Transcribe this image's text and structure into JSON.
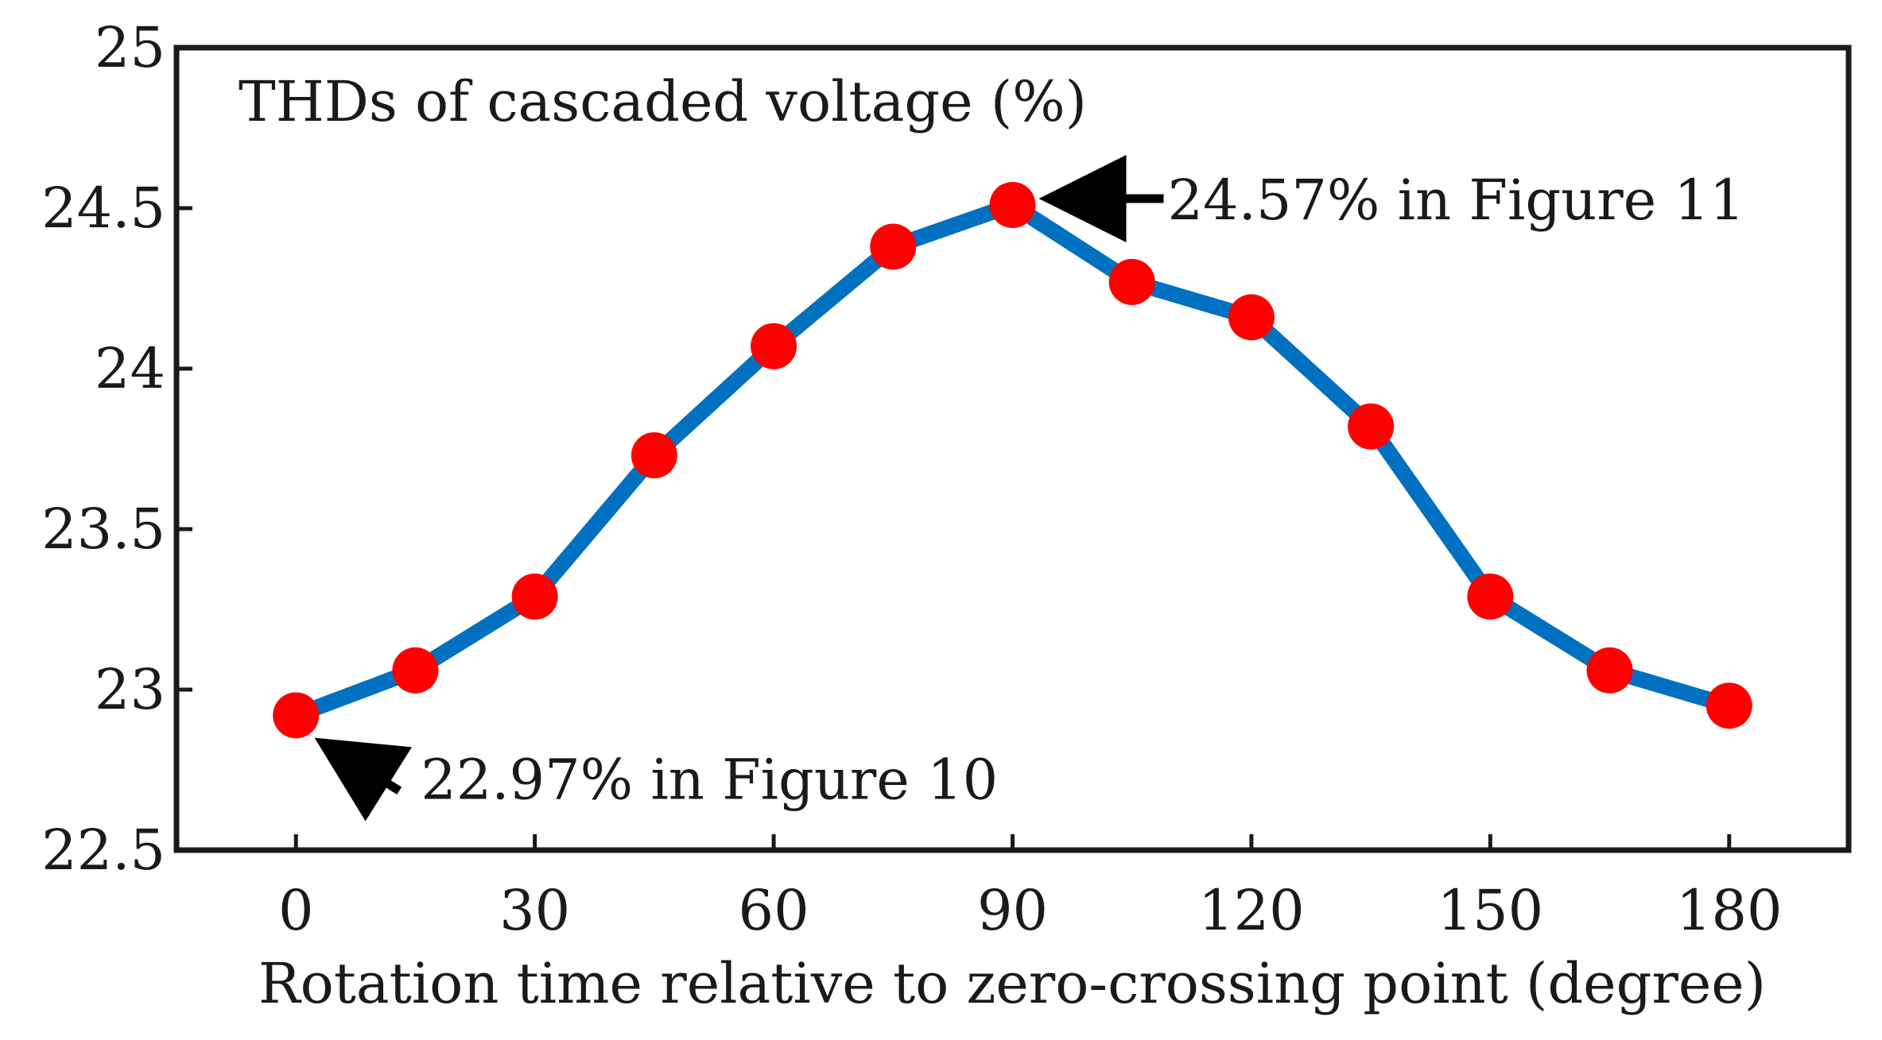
{
  "chart_data": {
    "type": "line",
    "title": "THDs of cascaded voltage (%)",
    "xlabel": "Rotation time relative to zero-crossing point (degree)",
    "ylabel": "",
    "xlim": [
      -15,
      195
    ],
    "ylim": [
      22.5,
      25
    ],
    "xticks": [
      0,
      30,
      60,
      90,
      120,
      150,
      180
    ],
    "yticks": [
      22.5,
      23,
      23.5,
      24,
      24.5,
      25
    ],
    "xtick_labels": [
      "0",
      "30",
      "60",
      "90",
      "120",
      "150",
      "180"
    ],
    "ytick_labels": [
      "22.5",
      "23",
      "23.5",
      "24",
      "24.5",
      "25"
    ],
    "grid": false,
    "series": [
      {
        "name": "THD",
        "x": [
          0,
          15,
          30,
          45,
          60,
          75,
          90,
          105,
          120,
          135,
          150,
          165,
          180
        ],
        "values": [
          22.92,
          23.06,
          23.29,
          23.73,
          24.07,
          24.38,
          24.51,
          24.27,
          24.16,
          23.82,
          23.29,
          23.06,
          22.95
        ],
        "line_color": "#0070c0",
        "marker_color": "#ff0000"
      }
    ],
    "annotations": [
      {
        "text": "24.57% in Figure 11",
        "x": 90,
        "y": 24.51,
        "side": "right"
      },
      {
        "text": "22.97% in Figure 10",
        "x": 0,
        "y": 22.92,
        "side": "below-right"
      }
    ]
  }
}
